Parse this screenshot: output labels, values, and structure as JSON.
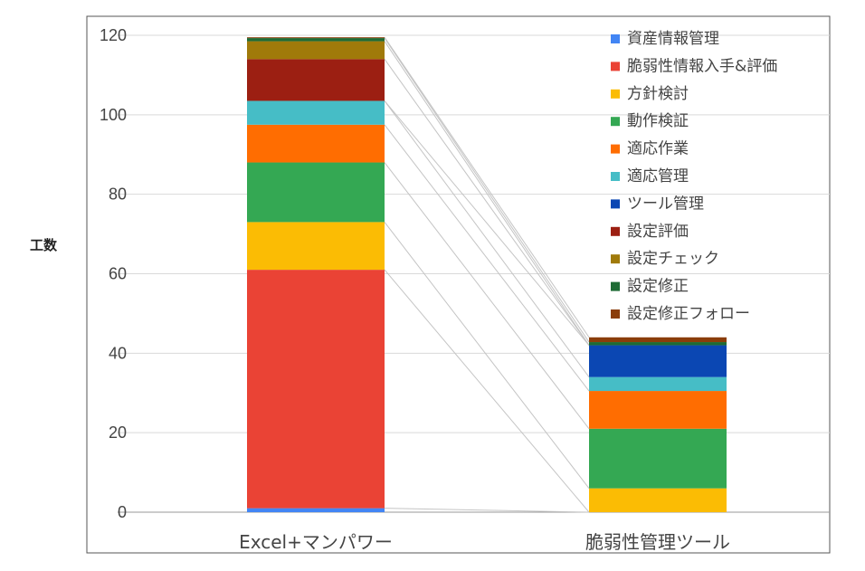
{
  "chart_data": {
    "type": "bar",
    "stacked": true,
    "ylabel": "工数",
    "ylim": [
      0,
      120
    ],
    "yticks": [
      "0",
      "20",
      "40",
      "60",
      "80",
      "100",
      "120"
    ],
    "categories": [
      "Excel+マンパワー",
      "脆弱性管理ツール"
    ],
    "grid": true,
    "legend_position": "top-right",
    "connector_lines": true,
    "series": [
      {
        "name": "資産情報管理",
        "color": "#4285f4",
        "values": [
          1,
          0
        ]
      },
      {
        "name": "脆弱性情報入手&評価",
        "color": "#ea4335",
        "values": [
          60,
          0
        ]
      },
      {
        "name": "方針検討",
        "color": "#fbbc04",
        "values": [
          12,
          6
        ]
      },
      {
        "name": "動作検証",
        "color": "#34a853",
        "values": [
          15,
          15
        ]
      },
      {
        "name": "適応作業",
        "color": "#ff6d01",
        "values": [
          9.5,
          9.5
        ]
      },
      {
        "name": "適応管理",
        "color": "#46bdc6",
        "values": [
          6,
          3.5
        ]
      },
      {
        "name": "ツール管理",
        "color": "#0b47b3",
        "values": [
          0,
          8
        ]
      },
      {
        "name": "設定評価",
        "color": "#9c1f12",
        "values": [
          10.5,
          0
        ]
      },
      {
        "name": "設定チェック",
        "color": "#a07a0a",
        "values": [
          4.5,
          0
        ]
      },
      {
        "name": "設定修正",
        "color": "#1e6b34",
        "values": [
          0.8,
          0.8
        ]
      },
      {
        "name": "設定修正フォロー",
        "color": "#8a3d0a",
        "values": [
          0.2,
          1.2
        ]
      }
    ]
  }
}
